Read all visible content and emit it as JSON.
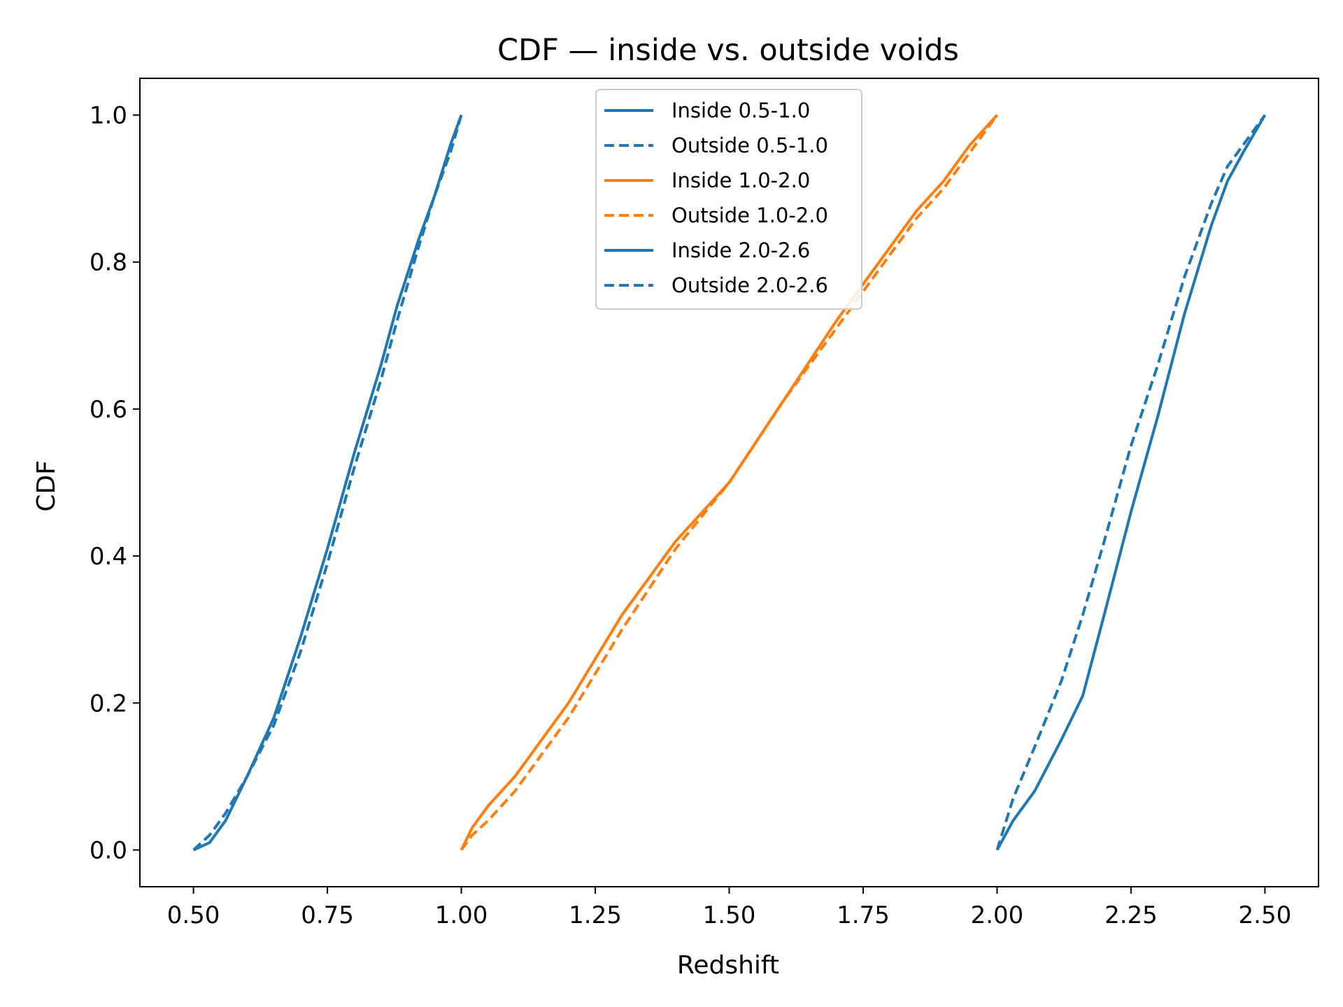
{
  "chart_data": {
    "type": "line",
    "title": "CDF — inside vs. outside voids",
    "xlabel": "Redshift",
    "ylabel": "CDF",
    "xlim": [
      0.4,
      2.6
    ],
    "ylim": [
      -0.05,
      1.05
    ],
    "xticks": [
      "0.50",
      "0.75",
      "1.00",
      "1.25",
      "1.50",
      "1.75",
      "2.00",
      "2.25",
      "2.50"
    ],
    "yticks": [
      "0.0",
      "0.2",
      "0.4",
      "0.6",
      "0.8",
      "1.0"
    ],
    "grid": false,
    "legend_position": "top-center",
    "colors": {
      "blue": "#1f77b4",
      "orange": "#ff7f0e"
    },
    "series": [
      {
        "name": "Inside 0.5-1.0",
        "color": "#1f77b4",
        "dash": "solid",
        "x": [
          0.5,
          0.53,
          0.56,
          0.6,
          0.65,
          0.7,
          0.75,
          0.8,
          0.85,
          0.88,
          0.92,
          0.95,
          0.98,
          1.0
        ],
        "y": [
          0.0,
          0.01,
          0.04,
          0.1,
          0.18,
          0.29,
          0.41,
          0.54,
          0.66,
          0.74,
          0.83,
          0.89,
          0.96,
          1.0
        ]
      },
      {
        "name": "Outside 0.5-1.0",
        "color": "#1f77b4",
        "dash": "dashed",
        "x": [
          0.5,
          0.53,
          0.56,
          0.6,
          0.65,
          0.7,
          0.75,
          0.8,
          0.85,
          0.88,
          0.92,
          0.95,
          0.98,
          1.0
        ],
        "y": [
          0.0,
          0.02,
          0.05,
          0.1,
          0.17,
          0.27,
          0.39,
          0.52,
          0.64,
          0.72,
          0.82,
          0.89,
          0.95,
          1.0
        ]
      },
      {
        "name": "Inside 1.0-2.0",
        "color": "#ff7f0e",
        "dash": "solid",
        "x": [
          1.0,
          1.02,
          1.05,
          1.1,
          1.2,
          1.3,
          1.4,
          1.5,
          1.6,
          1.7,
          1.8,
          1.85,
          1.9,
          1.95,
          2.0
        ],
        "y": [
          0.0,
          0.03,
          0.06,
          0.1,
          0.2,
          0.32,
          0.42,
          0.5,
          0.61,
          0.72,
          0.82,
          0.87,
          0.91,
          0.96,
          1.0
        ]
      },
      {
        "name": "Outside 1.0-2.0",
        "color": "#ff7f0e",
        "dash": "dashed",
        "x": [
          1.0,
          1.02,
          1.05,
          1.1,
          1.2,
          1.3,
          1.4,
          1.5,
          1.6,
          1.7,
          1.8,
          1.85,
          1.9,
          1.95,
          2.0
        ],
        "y": [
          0.0,
          0.02,
          0.04,
          0.08,
          0.18,
          0.3,
          0.41,
          0.5,
          0.61,
          0.71,
          0.81,
          0.86,
          0.9,
          0.95,
          1.0
        ]
      },
      {
        "name": "Inside 2.0-2.6",
        "color": "#1f77b4",
        "dash": "solid",
        "x": [
          2.0,
          2.03,
          2.07,
          2.12,
          2.16,
          2.2,
          2.25,
          2.3,
          2.35,
          2.4,
          2.43,
          2.46,
          2.5
        ],
        "y": [
          0.0,
          0.04,
          0.08,
          0.15,
          0.21,
          0.32,
          0.46,
          0.59,
          0.73,
          0.85,
          0.91,
          0.95,
          1.0
        ]
      },
      {
        "name": "Outside 2.0-2.6",
        "color": "#1f77b4",
        "dash": "dashed",
        "x": [
          2.0,
          2.03,
          2.07,
          2.12,
          2.16,
          2.2,
          2.25,
          2.3,
          2.35,
          2.4,
          2.43,
          2.46,
          2.5
        ],
        "y": [
          0.0,
          0.07,
          0.14,
          0.23,
          0.32,
          0.42,
          0.55,
          0.66,
          0.78,
          0.88,
          0.93,
          0.96,
          1.0
        ]
      }
    ]
  }
}
